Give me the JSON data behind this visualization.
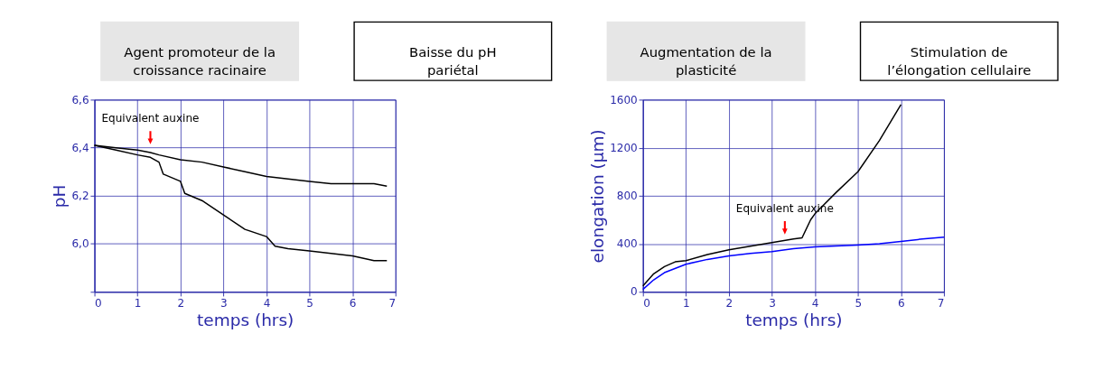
{
  "chart_data": [
    {
      "type": "other",
      "annotations": [
        "Agent promoteur de la\ncroissance racinaire",
        "Baisse du pH\npariétal",
        "Augmentation de la\nplasticité",
        "Stimulation de\nl’élongation cellulaire"
      ]
    },
    {
      "type": "line",
      "xlabel": "temps (hrs)",
      "ylabel": "pH",
      "xlim": [
        0,
        7
      ],
      "xticks": [
        0,
        1,
        2,
        3,
        4,
        5,
        6,
        7
      ],
      "ylim": [
        5.8,
        6.6
      ],
      "yticks": [
        {
          "value": 5.8,
          "label": null
        },
        {
          "value": 6.0,
          "label": "6,0"
        },
        {
          "value": 6.2,
          "label": "6,2"
        },
        {
          "value": 6.4,
          "label": "6,4"
        },
        {
          "value": 6.6,
          "label": "6,6"
        }
      ],
      "grid": true,
      "marker": "none",
      "line_style": "solid",
      "annotations": [
        {
          "text": "Equivalent auxine",
          "x": 1.3,
          "y": 6.4
        }
      ],
      "series": [
        {
          "color": "#000000",
          "x": [
            0,
            0.5,
            1,
            1.3,
            1.5,
            2,
            2.5,
            3,
            3.5,
            4,
            4.5,
            5,
            5.5,
            6,
            6.5,
            6.8
          ],
          "values": [
            6.41,
            6.4,
            6.39,
            6.38,
            6.37,
            6.35,
            6.34,
            6.32,
            6.3,
            6.28,
            6.27,
            6.26,
            6.25,
            6.25,
            6.25,
            6.24
          ]
        },
        {
          "color": "#000000",
          "x": [
            0,
            0.5,
            1,
            1.3,
            1.5,
            1.6,
            2,
            2.1,
            2.5,
            3,
            3.5,
            4,
            4.2,
            4.5,
            5,
            5.5,
            6,
            6.5,
            6.8
          ],
          "values": [
            6.41,
            6.39,
            6.37,
            6.36,
            6.34,
            6.29,
            6.26,
            6.21,
            6.18,
            6.12,
            6.06,
            6.03,
            5.99,
            5.98,
            5.97,
            5.96,
            5.95,
            5.93,
            5.93
          ]
        }
      ]
    },
    {
      "type": "line",
      "xlabel": "temps (hrs)",
      "ylabel": "elongation (µm)",
      "xlim": [
        0,
        7
      ],
      "xticks": [
        0,
        1,
        2,
        3,
        4,
        5,
        6,
        7
      ],
      "ylim": [
        0,
        1600
      ],
      "yticks": [
        0,
        400,
        800,
        1200,
        1600
      ],
      "grid": true,
      "marker": "none",
      "line_style": "solid",
      "annotations": [
        {
          "text": "Equivalent auxine",
          "x": 3.3,
          "y": 450
        }
      ],
      "series": [
        {
          "color": "#000000",
          "x": [
            0,
            0.25,
            0.5,
            0.75,
            1,
            1.5,
            2,
            2.5,
            3,
            3.5,
            3.7,
            3.9,
            4,
            4.5,
            5,
            5.5,
            6
          ],
          "values": [
            50,
            150,
            210,
            250,
            260,
            310,
            350,
            380,
            410,
            440,
            450,
            600,
            650,
            830,
            1000,
            1260,
            1560
          ]
        },
        {
          "color": "#0000ff",
          "x": [
            0,
            0.25,
            0.5,
            1,
            1.5,
            2,
            2.5,
            3,
            3.5,
            4,
            5,
            5.5,
            6,
            6.5,
            7
          ],
          "values": [
            20,
            100,
            160,
            230,
            270,
            300,
            320,
            335,
            360,
            375,
            390,
            400,
            420,
            440,
            455
          ]
        }
      ]
    }
  ]
}
